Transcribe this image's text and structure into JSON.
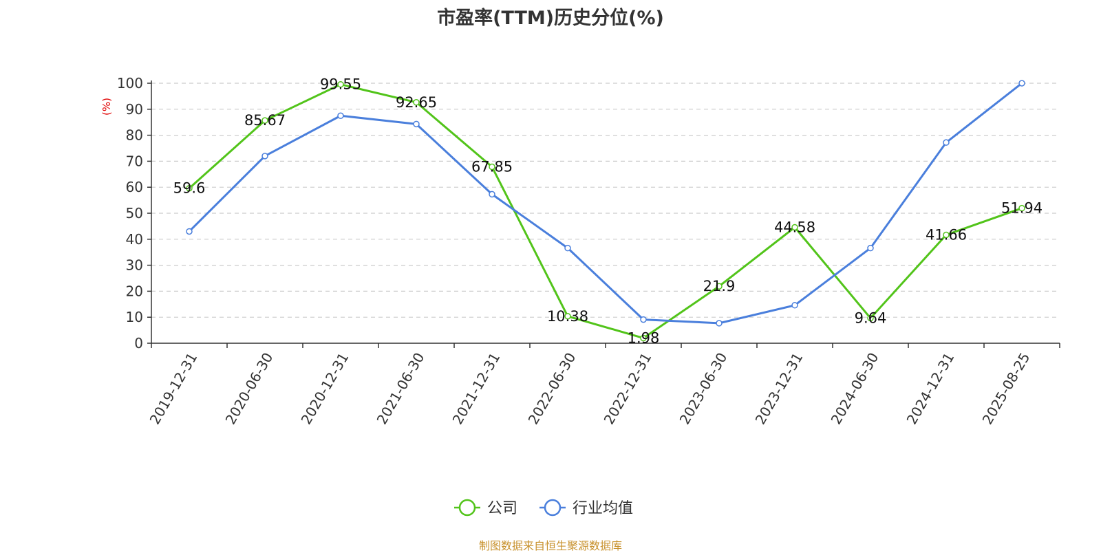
{
  "chart_data": {
    "type": "line",
    "title": "市盈率(TTM)历史分位(%)",
    "ylabel": "(%)",
    "ylim": [
      0,
      100
    ],
    "yticks": [
      0,
      10,
      20,
      30,
      40,
      50,
      60,
      70,
      80,
      90,
      100
    ],
    "grid": true,
    "legend_position": "bottom",
    "categories": [
      "2019-12-31",
      "2020-06-30",
      "2020-12-31",
      "2021-06-30",
      "2021-12-31",
      "2022-06-30",
      "2022-12-31",
      "2023-06-30",
      "2023-12-31",
      "2024-06-30",
      "2024-12-31",
      "2025-08-25"
    ],
    "series": [
      {
        "name": "公司",
        "color": "#52c41a",
        "show_labels": true,
        "labels": [
          "59.6",
          "85.67",
          "99.55",
          "92.65",
          "67.85",
          "10.38",
          "1.98",
          "21.9",
          "44.58",
          "9.64",
          "41.66",
          "51.94"
        ],
        "values": [
          59.6,
          85.67,
          99.55,
          92.65,
          67.85,
          10.38,
          1.98,
          21.9,
          44.58,
          9.64,
          41.66,
          51.94
        ]
      },
      {
        "name": "行业均值",
        "color": "#4a7fdc",
        "show_labels": false,
        "values": [
          43,
          72,
          87.5,
          84.3,
          57.3,
          36.6,
          9.1,
          7.7,
          14.6,
          36.6,
          77.2,
          100
        ]
      }
    ]
  },
  "source_note": "制图数据来自恒生聚源数据库"
}
